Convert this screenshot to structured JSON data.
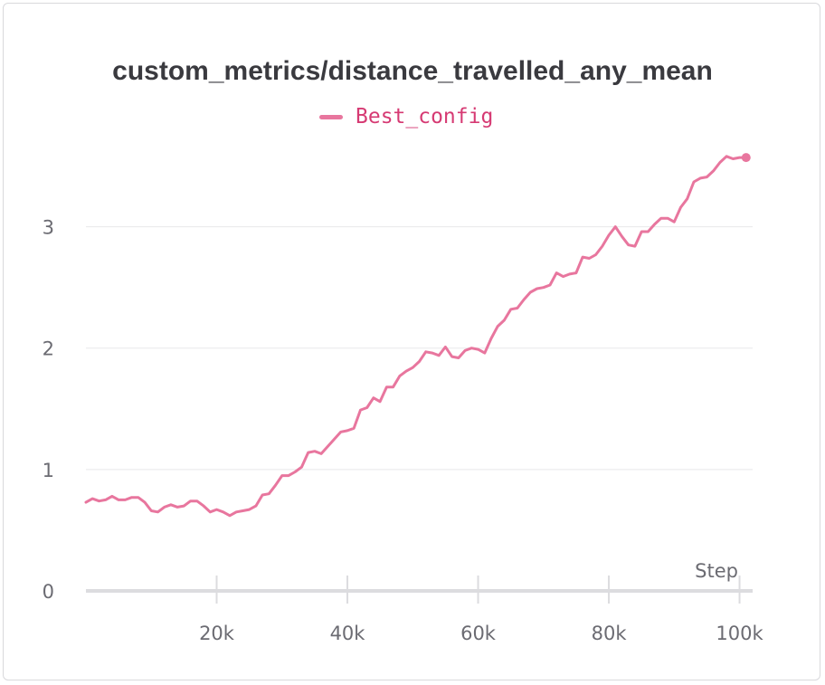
{
  "colors": {
    "series": "#e8769e",
    "grid": "#e8e8ea",
    "axis": "#dcdcdf",
    "legend_text": "#d63a73"
  },
  "chart_data": {
    "type": "line",
    "title": "custom_metrics/distance_travelled_any_mean",
    "xlabel": "Step",
    "ylabel": "",
    "xlim": [
      0,
      102000
    ],
    "ylim": [
      0,
      3.75
    ],
    "x_ticks": [
      20000,
      40000,
      60000,
      80000,
      100000
    ],
    "x_tick_labels": [
      "20k",
      "40k",
      "60k",
      "80k",
      "100k"
    ],
    "y_ticks": [
      0,
      1,
      2,
      3
    ],
    "y_tick_labels": [
      "0",
      "1",
      "2",
      "3"
    ],
    "grid": true,
    "legend": "top-center",
    "series": [
      {
        "name": "Best_config",
        "x": [
          0,
          1000,
          2000,
          3000,
          4000,
          5000,
          6000,
          7000,
          8000,
          9000,
          10000,
          11000,
          12000,
          13000,
          14000,
          15000,
          16000,
          17000,
          18000,
          19000,
          20000,
          21000,
          22000,
          23000,
          24000,
          25000,
          26000,
          27000,
          28000,
          29000,
          30000,
          31000,
          32000,
          33000,
          34000,
          35000,
          36000,
          37000,
          38000,
          39000,
          40000,
          41000,
          42000,
          43000,
          44000,
          45000,
          46000,
          47000,
          48000,
          49000,
          50000,
          51000,
          52000,
          53000,
          54000,
          55000,
          56000,
          57000,
          58000,
          59000,
          60000,
          61000,
          62000,
          63000,
          64000,
          65000,
          66000,
          67000,
          68000,
          69000,
          70000,
          71000,
          72000,
          73000,
          74000,
          75000,
          76000,
          77000,
          78000,
          79000,
          80000,
          81000,
          82000,
          83000,
          84000,
          85000,
          86000,
          87000,
          88000,
          89000,
          90000,
          91000,
          92000,
          93000,
          94000,
          95000,
          96000,
          97000,
          98000,
          99000,
          100000,
          101000
        ],
        "y": [
          0.73,
          0.76,
          0.74,
          0.75,
          0.78,
          0.75,
          0.75,
          0.77,
          0.77,
          0.73,
          0.66,
          0.65,
          0.69,
          0.71,
          0.69,
          0.7,
          0.74,
          0.74,
          0.7,
          0.65,
          0.67,
          0.65,
          0.62,
          0.65,
          0.66,
          0.67,
          0.7,
          0.79,
          0.8,
          0.87,
          0.95,
          0.95,
          0.98,
          1.02,
          1.14,
          1.15,
          1.13,
          1.19,
          1.25,
          1.31,
          1.32,
          1.34,
          1.49,
          1.51,
          1.59,
          1.56,
          1.68,
          1.68,
          1.77,
          1.81,
          1.84,
          1.89,
          1.97,
          1.96,
          1.94,
          2.01,
          1.93,
          1.92,
          1.98,
          2.0,
          1.99,
          1.96,
          2.08,
          2.18,
          2.23,
          2.32,
          2.33,
          2.4,
          2.46,
          2.49,
          2.5,
          2.52,
          2.62,
          2.59,
          2.61,
          2.62,
          2.75,
          2.74,
          2.77,
          2.84,
          2.93,
          3.0,
          2.92,
          2.85,
          2.84,
          2.96,
          2.96,
          3.02,
          3.07,
          3.07,
          3.04,
          3.16,
          3.23,
          3.37,
          3.4,
          3.41,
          3.46,
          3.53,
          3.58,
          3.56,
          3.57,
          3.57
        ]
      }
    ]
  }
}
